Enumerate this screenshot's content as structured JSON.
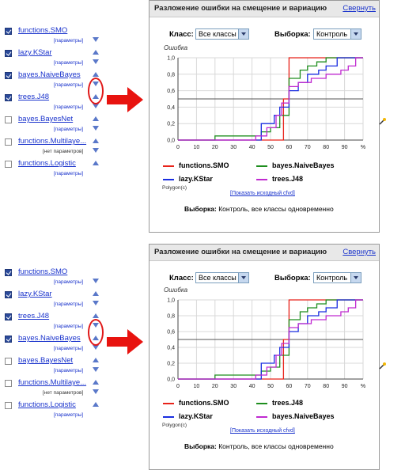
{
  "panels": [
    {
      "classifiers": [
        {
          "name": "functions.SMO",
          "params": "[параметры]",
          "checked": true,
          "arrows": [
            "down"
          ]
        },
        {
          "name": "lazy.KStar",
          "params": "[параметры]",
          "checked": true,
          "arrows": [
            "up",
            "down"
          ]
        },
        {
          "name": "bayes.NaiveBayes",
          "params": "[параметры]",
          "checked": true,
          "arrows": [
            "up",
            "down"
          ]
        },
        {
          "name": "trees.J48",
          "params": "[параметры]",
          "checked": true,
          "arrows": [
            "up",
            "down"
          ]
        },
        {
          "name": "bayes.BayesNet",
          "params": "[параметры]",
          "checked": false,
          "arrows": [
            "up",
            "down"
          ]
        },
        {
          "name": "functions.Multilaye...",
          "params": "[нет параметров]",
          "checked": false,
          "arrows": [
            "up",
            "down"
          ]
        },
        {
          "name": "functions.Logistic",
          "params": "[параметры]",
          "checked": false,
          "arrows": [
            "up"
          ]
        }
      ],
      "title": "Разложение ошибки на смещение и вариацию",
      "collapse": "Свернуть",
      "class_label": "Класс:",
      "class_value": "Все классы",
      "sample_label": "Выборка:",
      "sample_value": "Контроль",
      "y_title": "Ошибка",
      "legend": [
        {
          "name": "functions.SMO",
          "color": "#e8231a"
        },
        {
          "name": "bayes.NaiveBayes",
          "color": "#1e8e1e"
        },
        {
          "name": "lazy.KStar",
          "color": "#1a2ee0"
        },
        {
          "name": "trees.J48",
          "color": "#c02ad0"
        }
      ],
      "polygon": "Polygon(c)",
      "show_source": "[Показать исходный cfvd]",
      "sampling_label": "Выборка:",
      "sampling_text": " Контроль, все классы одновременно"
    },
    {
      "classifiers": [
        {
          "name": "functions.SMO",
          "params": "[параметры]",
          "checked": true,
          "arrows": [
            "down"
          ]
        },
        {
          "name": "lazy.KStar",
          "params": "[параметры]",
          "checked": true,
          "arrows": [
            "up",
            "down"
          ]
        },
        {
          "name": "trees.J48",
          "params": "[параметры]",
          "checked": true,
          "arrows": [
            "up",
            "down"
          ]
        },
        {
          "name": "bayes.NaiveBayes",
          "params": "[параметры]",
          "checked": true,
          "arrows": [
            "up",
            "down"
          ]
        },
        {
          "name": "bayes.BayesNet",
          "params": "[параметры]",
          "checked": false,
          "arrows": [
            "up",
            "down"
          ]
        },
        {
          "name": "functions.Multilaye...",
          "params": "[нет параметров]",
          "checked": false,
          "arrows": [
            "up",
            "down"
          ]
        },
        {
          "name": "functions.Logistic",
          "params": "[параметры]",
          "checked": false,
          "arrows": [
            "up"
          ]
        }
      ],
      "title": "Разложение ошибки на смещение и вариацию",
      "collapse": "Свернуть",
      "class_label": "Класс:",
      "class_value": "Все классы",
      "sample_label": "Выборка:",
      "sample_value": "Контроль",
      "y_title": "Ошибка",
      "legend": [
        {
          "name": "functions.SMO",
          "color": "#e8231a"
        },
        {
          "name": "trees.J48",
          "color": "#1e8e1e"
        },
        {
          "name": "lazy.KStar",
          "color": "#1a2ee0"
        },
        {
          "name": "bayes.NaiveBayes",
          "color": "#c02ad0"
        }
      ],
      "polygon": "Polygon(c)",
      "show_source": "[Показать исходный cfvd]",
      "sampling_label": "Выборка:",
      "sampling_text": " Контроль, все классы одновременно"
    }
  ],
  "chart_data": [
    {
      "type": "line",
      "ylabel": "Ошибка",
      "x_ticks": [
        "0",
        "10",
        "20",
        "30",
        "40",
        "50",
        "60",
        "70",
        "80",
        "90",
        "%"
      ],
      "y_ticks": [
        "0,0",
        "0,2",
        "0,4",
        "0,6",
        "0,8",
        "1,0"
      ],
      "xlim": [
        0,
        100
      ],
      "ylim": [
        0,
        1
      ],
      "reference_line": 0.5,
      "series": [
        {
          "name": "functions.SMO",
          "color": "#e8231a",
          "x": [
            0,
            55,
            57,
            60,
            100
          ],
          "y": [
            0,
            0,
            0.5,
            1,
            1
          ]
        },
        {
          "name": "bayes.NaiveBayes",
          "color": "#1e8e1e",
          "x": [
            0,
            20,
            45,
            50,
            55,
            60,
            66,
            70,
            75,
            80,
            100
          ],
          "y": [
            0,
            0.05,
            0.1,
            0.15,
            0.3,
            0.75,
            0.85,
            0.9,
            0.95,
            1,
            1
          ]
        },
        {
          "name": "lazy.KStar",
          "color": "#1a2ee0",
          "x": [
            0,
            40,
            45,
            52,
            55,
            60,
            65,
            70,
            76,
            80,
            86,
            100
          ],
          "y": [
            0,
            0,
            0.2,
            0.3,
            0.4,
            0.6,
            0.7,
            0.8,
            0.85,
            0.9,
            1,
            1
          ]
        },
        {
          "name": "trees.J48",
          "color": "#c02ad0",
          "x": [
            0,
            42,
            48,
            53,
            56,
            60,
            65,
            72,
            80,
            88,
            92,
            96,
            100
          ],
          "y": [
            0,
            0.05,
            0.15,
            0.3,
            0.45,
            0.65,
            0.7,
            0.75,
            0.8,
            0.85,
            0.9,
            1,
            1
          ]
        }
      ]
    },
    {
      "type": "line",
      "ylabel": "Ошибка",
      "x_ticks": [
        "0",
        "10",
        "20",
        "30",
        "40",
        "50",
        "60",
        "70",
        "80",
        "90",
        "%"
      ],
      "y_ticks": [
        "0,0",
        "0,2",
        "0,4",
        "0,6",
        "0,8",
        "1,0"
      ],
      "xlim": [
        0,
        100
      ],
      "ylim": [
        0,
        1
      ],
      "reference_line": 0.5,
      "series": [
        {
          "name": "functions.SMO",
          "color": "#e8231a",
          "x": [
            0,
            55,
            57,
            60,
            100
          ],
          "y": [
            0,
            0,
            0.5,
            1,
            1
          ]
        },
        {
          "name": "trees.J48",
          "color": "#1e8e1e",
          "x": [
            0,
            20,
            45,
            50,
            55,
            60,
            66,
            70,
            75,
            80,
            100
          ],
          "y": [
            0,
            0.05,
            0.1,
            0.15,
            0.3,
            0.75,
            0.85,
            0.9,
            0.95,
            1,
            1
          ]
        },
        {
          "name": "lazy.KStar",
          "color": "#1a2ee0",
          "x": [
            0,
            40,
            45,
            52,
            55,
            60,
            65,
            70,
            76,
            80,
            86,
            100
          ],
          "y": [
            0,
            0,
            0.2,
            0.3,
            0.4,
            0.6,
            0.7,
            0.8,
            0.85,
            0.9,
            1,
            1
          ]
        },
        {
          "name": "bayes.NaiveBayes",
          "color": "#c02ad0",
          "x": [
            0,
            42,
            48,
            53,
            56,
            60,
            65,
            72,
            80,
            88,
            92,
            96,
            100
          ],
          "y": [
            0,
            0.05,
            0.15,
            0.3,
            0.45,
            0.65,
            0.7,
            0.75,
            0.8,
            0.85,
            0.9,
            1,
            1
          ]
        }
      ]
    }
  ]
}
